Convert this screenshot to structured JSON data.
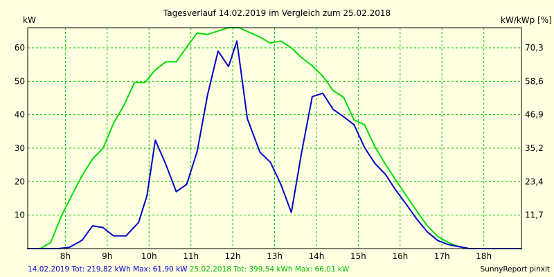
{
  "chart_data": {
    "type": "line",
    "title": "Tagesverlauf 14.02.2019 im Vergleich zum 25.02.2018",
    "ylabel_left": "kW",
    "ylabel_right": "kW/kWp [%]",
    "x_ticks": [
      "8h",
      "9h",
      "10h",
      "11h",
      "12h",
      "13h",
      "14h",
      "15h",
      "16h",
      "17h",
      "18h"
    ],
    "y_ticks_left": [
      "10",
      "20",
      "30",
      "40",
      "50",
      "60"
    ],
    "y_ticks_right": [
      "11,7",
      "23,4",
      "35,2",
      "46,9",
      "58,6",
      "70,3"
    ],
    "xlim": [
      7.1,
      18.9
    ],
    "ylim": [
      0,
      66
    ],
    "grid": true,
    "series": [
      {
        "color": "#0000cc",
        "x": [
          7.1,
          7.6,
          7.83,
          8.1,
          8.4,
          8.65,
          8.9,
          9.15,
          9.45,
          9.75,
          9.95,
          10.15,
          10.4,
          10.65,
          10.9,
          11.15,
          11.4,
          11.65,
          11.9,
          12.1,
          12.35,
          12.65,
          12.9,
          13.15,
          13.4,
          13.65,
          13.9,
          14.15,
          14.4,
          14.65,
          14.9,
          15.15,
          15.4,
          15.65,
          15.9,
          16.15,
          16.4,
          16.65,
          16.9,
          17.15,
          17.4,
          17.65,
          18.1,
          18.9
        ],
        "y": [
          0,
          0,
          0,
          0.4,
          2.5,
          6.8,
          6.3,
          3.8,
          3.8,
          7.8,
          15.8,
          32.4,
          25.2,
          17.0,
          19.2,
          29.0,
          46.0,
          59.0,
          54.4,
          62.0,
          38.8,
          28.8,
          25.8,
          19.2,
          10.8,
          29.0,
          45.4,
          46.4,
          41.6,
          39.4,
          37.0,
          30.2,
          25.4,
          22.2,
          17.4,
          13.2,
          8.8,
          5.0,
          2.4,
          1.2,
          0.6,
          0,
          0,
          0
        ]
      },
      {
        "color": "#00dd00",
        "x": [
          7.1,
          7.4,
          7.65,
          7.9,
          8.15,
          8.4,
          8.65,
          8.9,
          9.15,
          9.4,
          9.65,
          9.9,
          10.15,
          10.4,
          10.65,
          10.9,
          11.15,
          11.4,
          11.65,
          11.9,
          12.15,
          12.4,
          12.65,
          12.9,
          13.15,
          13.4,
          13.65,
          13.9,
          14.15,
          14.4,
          14.65,
          14.9,
          15.15,
          15.4,
          15.65,
          15.9,
          16.15,
          16.4,
          16.65,
          16.9,
          17.15,
          17.4,
          17.65,
          18.1,
          18.9
        ],
        "y": [
          0,
          0,
          1.8,
          9.6,
          15.8,
          21.8,
          26.8,
          30.0,
          37.4,
          42.8,
          49.6,
          49.6,
          53.4,
          55.8,
          55.8,
          60.2,
          64.4,
          64.0,
          65.0,
          66.0,
          66.0,
          64.6,
          63.2,
          61.4,
          62.0,
          60.0,
          57.0,
          54.6,
          51.6,
          47.2,
          45.2,
          38.4,
          37.0,
          30.4,
          25.2,
          20.4,
          15.8,
          11.2,
          6.8,
          3.6,
          1.8,
          0.6,
          0,
          0,
          0
        ]
      }
    ],
    "footer": {
      "left_series1": "14.02.2019 Tot: 219,82 kWh Max: 61,90 kW",
      "left_series2": "25.02.2018 Tot: 399,54 kWh Max: 66,01 kW",
      "right": "SunnyReport pinxit"
    },
    "colors": {
      "background": "#ffffe1",
      "grid": "#00cc00",
      "series1": "#0000cc",
      "series2": "#00dd00"
    }
  }
}
